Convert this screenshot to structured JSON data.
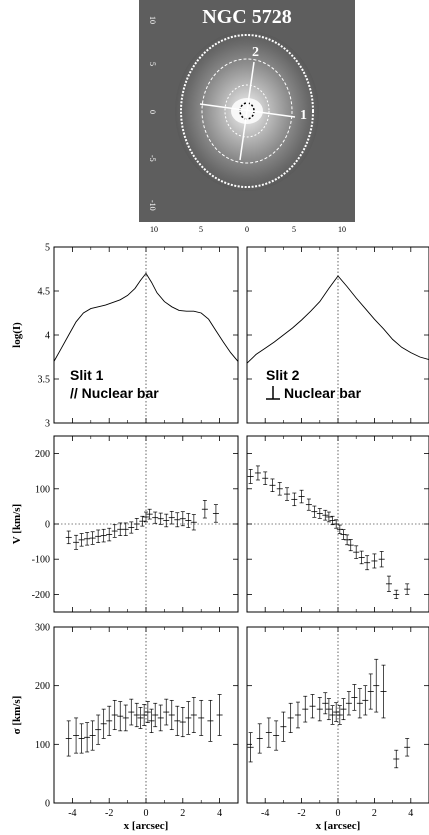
{
  "image_panel": {
    "title": "NGC 5728",
    "slit_labels": [
      "1",
      "2"
    ],
    "y_ticks": [
      "10",
      "5",
      "0",
      "-5",
      "-10"
    ],
    "x_ticks": [
      "10",
      "5",
      "0",
      "5",
      "10"
    ]
  },
  "annotations": {
    "slit1_title": "Slit 1",
    "slit1_sub": "// Nuclear bar",
    "slit2_title": "Slit 2",
    "slit2_sub": "Nuclear bar"
  },
  "chart_data": [
    {
      "type": "line",
      "panel": "logI-slit1",
      "ylabel": "log(I)",
      "xlabel": "",
      "ylim": [
        3,
        5
      ],
      "xlim": [
        -5,
        5
      ],
      "y_ticks": [
        "3",
        "3.5",
        "4",
        "4.5",
        "5"
      ],
      "x": [
        -5.0,
        -4.6,
        -4.2,
        -3.8,
        -3.4,
        -3.0,
        -2.6,
        -2.2,
        -1.8,
        -1.4,
        -1.0,
        -0.6,
        -0.3,
        0.0,
        0.3,
        0.6,
        1.0,
        1.4,
        1.8,
        2.2,
        2.6,
        3.0,
        3.4,
        3.8,
        4.2,
        4.6,
        5.0
      ],
      "y": [
        3.7,
        3.85,
        4.0,
        4.15,
        4.25,
        4.3,
        4.32,
        4.34,
        4.37,
        4.4,
        4.45,
        4.53,
        4.62,
        4.7,
        4.6,
        4.48,
        4.38,
        4.32,
        4.28,
        4.27,
        4.27,
        4.25,
        4.18,
        4.05,
        3.92,
        3.8,
        3.7
      ]
    },
    {
      "type": "line",
      "panel": "logI-slit2",
      "ylabel": "",
      "xlabel": "",
      "ylim": [
        3,
        5
      ],
      "xlim": [
        -5,
        5
      ],
      "x": [
        -5.0,
        -4.5,
        -4.0,
        -3.5,
        -3.0,
        -2.5,
        -2.0,
        -1.5,
        -1.0,
        -0.5,
        0.0,
        0.5,
        1.0,
        1.5,
        2.0,
        2.5,
        3.0,
        3.5,
        4.0,
        4.5,
        5.0
      ],
      "y": [
        3.68,
        3.78,
        3.85,
        3.92,
        4.0,
        4.08,
        4.17,
        4.27,
        4.38,
        4.53,
        4.67,
        4.55,
        4.42,
        4.3,
        4.18,
        4.07,
        3.95,
        3.86,
        3.8,
        3.75,
        3.72
      ]
    },
    {
      "type": "scatter",
      "panel": "V-slit1",
      "ylabel": "V [km/s]",
      "xlabel": "",
      "ylim": [
        -250,
        250
      ],
      "xlim": [
        -5,
        5
      ],
      "y_ticks": [
        "-200",
        "-100",
        "0",
        "100",
        "200"
      ],
      "x": [
        -4.2,
        -3.8,
        -3.5,
        -3.2,
        -2.9,
        -2.6,
        -2.3,
        -2.0,
        -1.7,
        -1.4,
        -1.1,
        -0.8,
        -0.5,
        -0.2,
        0.0,
        0.2,
        0.5,
        0.8,
        1.1,
        1.4,
        1.7,
        2.0,
        2.3,
        2.6,
        3.2,
        3.8
      ],
      "y": [
        -38,
        -52,
        -45,
        -42,
        -40,
        -35,
        -33,
        -30,
        -20,
        -15,
        -15,
        -10,
        0,
        8,
        20,
        28,
        18,
        15,
        10,
        18,
        12,
        15,
        10,
        5,
        42,
        30
      ],
      "err": [
        18,
        20,
        18,
        18,
        18,
        18,
        18,
        18,
        18,
        18,
        18,
        16,
        16,
        14,
        14,
        14,
        16,
        16,
        18,
        18,
        20,
        20,
        20,
        22,
        25,
        25
      ]
    },
    {
      "type": "scatter",
      "panel": "V-slit2",
      "ylabel": "",
      "xlabel": "",
      "ylim": [
        -250,
        250
      ],
      "xlim": [
        -5,
        5
      ],
      "x": [
        -4.8,
        -4.4,
        -4.0,
        -3.6,
        -3.2,
        -2.8,
        -2.4,
        -2.0,
        -1.6,
        -1.3,
        -1.0,
        -0.7,
        -0.5,
        -0.3,
        -0.1,
        0.1,
        0.3,
        0.5,
        0.7,
        1.0,
        1.3,
        1.6,
        2.0,
        2.4,
        2.8,
        3.2,
        3.8
      ],
      "y": [
        135,
        145,
        130,
        110,
        100,
        85,
        70,
        78,
        55,
        35,
        30,
        25,
        20,
        10,
        0,
        -15,
        -30,
        -45,
        -60,
        -80,
        -95,
        -110,
        -105,
        -100,
        -170,
        -200,
        -185
      ],
      "err": [
        20,
        20,
        18,
        18,
        18,
        18,
        18,
        18,
        16,
        16,
        14,
        14,
        14,
        12,
        12,
        12,
        14,
        14,
        16,
        18,
        18,
        20,
        20,
        22,
        22,
        12,
        15
      ]
    },
    {
      "type": "scatter",
      "panel": "sigma-slit1",
      "ylabel": "σ [km/s]",
      "xlabel": "x [arcsec]",
      "ylim": [
        0,
        300
      ],
      "xlim": [
        -5,
        5
      ],
      "y_ticks": [
        "0",
        "100",
        "200",
        "300"
      ],
      "x_ticks": [
        "-4",
        "-2",
        "0",
        "2",
        "4"
      ],
      "x": [
        -4.2,
        -3.8,
        -3.5,
        -3.2,
        -2.9,
        -2.6,
        -2.3,
        -2.0,
        -1.7,
        -1.4,
        -1.1,
        -0.8,
        -0.5,
        -0.3,
        -0.1,
        0.1,
        0.3,
        0.5,
        0.8,
        1.1,
        1.4,
        1.7,
        2.0,
        2.3,
        2.6,
        3.0,
        3.5,
        4.0
      ],
      "y": [
        110,
        115,
        110,
        112,
        115,
        125,
        135,
        140,
        150,
        148,
        145,
        155,
        150,
        145,
        150,
        155,
        140,
        150,
        145,
        155,
        150,
        140,
        138,
        145,
        150,
        145,
        140,
        150
      ],
      "err": [
        30,
        30,
        25,
        25,
        25,
        25,
        25,
        25,
        25,
        25,
        22,
        22,
        20,
        18,
        18,
        18,
        20,
        20,
        22,
        22,
        25,
        25,
        25,
        28,
        30,
        30,
        35,
        35
      ]
    },
    {
      "type": "scatter",
      "panel": "sigma-slit2",
      "ylabel": "",
      "xlabel": "x [arcsec]",
      "ylim": [
        0,
        300
      ],
      "xlim": [
        -5,
        5
      ],
      "x_ticks": [
        "-4",
        "-2",
        "0",
        "2",
        "4"
      ],
      "x": [
        -4.8,
        -4.3,
        -3.8,
        -3.4,
        -3.0,
        -2.6,
        -2.2,
        -1.8,
        -1.4,
        -1.0,
        -0.7,
        -0.5,
        -0.3,
        -0.1,
        0.1,
        0.3,
        0.6,
        0.9,
        1.2,
        1.5,
        1.8,
        2.1,
        2.5,
        3.2,
        3.8
      ],
      "y": [
        95,
        110,
        120,
        115,
        130,
        145,
        150,
        160,
        165,
        160,
        170,
        160,
        150,
        155,
        150,
        160,
        170,
        180,
        170,
        175,
        190,
        200,
        190,
        75,
        95
      ],
      "err": [
        25,
        25,
        25,
        25,
        25,
        25,
        22,
        22,
        20,
        20,
        18,
        18,
        16,
        16,
        16,
        18,
        20,
        22,
        25,
        25,
        30,
        45,
        45,
        15,
        15
      ]
    }
  ]
}
